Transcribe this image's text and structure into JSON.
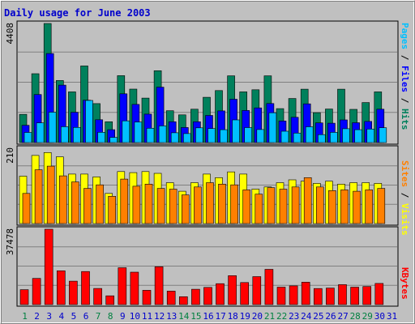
{
  "chart_data": {
    "type": "bar",
    "title": "Daily usage for June 2003",
    "categories": [
      "1",
      "2",
      "3",
      "4",
      "5",
      "6",
      "7",
      "8",
      "9",
      "10",
      "11",
      "12",
      "13",
      "14",
      "15",
      "16",
      "17",
      "18",
      "19",
      "20",
      "21",
      "22",
      "23",
      "24",
      "25",
      "26",
      "27",
      "28",
      "29",
      "30",
      "31"
    ],
    "weekend_days": [
      "1",
      "7",
      "8",
      "14",
      "15",
      "21",
      "22",
      "28",
      "29"
    ],
    "colors": {
      "background": "#c0c0c0",
      "border_outer": "#808080",
      "title": "#0000cc",
      "grid": "#808080",
      "hits": "#00805c",
      "files": "#0000ff",
      "pages": "#00c0ff",
      "visits": "#ffff00",
      "sites": "#ff8000",
      "kbytes": "#ff0000",
      "weekday_label": "#0000cc",
      "weekend_label": "#008040"
    },
    "panels": [
      {
        "id": "hits-files-pages",
        "ymax_label": "4408",
        "ymax": 4408,
        "legend": [
          {
            "text": "Pages",
            "color": "#00c0ff"
          },
          {
            "text": " / ",
            "color": "#000000"
          },
          {
            "text": "Files",
            "color": "#0000ff"
          },
          {
            "text": " / ",
            "color": "#000000"
          },
          {
            "text": "Hits",
            "color": "#00805c"
          }
        ],
        "series": [
          {
            "name": "Hits",
            "color": "#00805c",
            "values": [
              1044,
              2548,
              4408,
              2296,
              1876,
              2836,
              1442,
              772,
              2476,
              1980,
              1646,
              2660,
              1178,
              1026,
              1236,
              1676,
              1924,
              2470,
              1876,
              1954,
              2470,
              1256,
              1630,
              1976,
              1106,
              1240,
              1976,
              1228,
              1480,
              1876,
              0
            ]
          },
          {
            "name": "Files",
            "color": "#0000ff",
            "values": [
              640,
              1778,
              3296,
              2126,
              1120,
              1568,
              846,
              476,
              1806,
              1412,
              1054,
              2052,
              772,
              558,
              772,
              1004,
              1172,
              1604,
              1186,
              1284,
              1446,
              798,
              936,
              1432,
              728,
              718,
              840,
              734,
              784,
              1236,
              0
            ]
          },
          {
            "name": "Pages",
            "color": "#00c0ff",
            "values": [
              376,
              728,
              1124,
              588,
              560,
              1558,
              380,
              192,
              804,
              760,
              530,
              618,
              362,
              332,
              546,
              518,
              476,
              840,
              556,
              484,
              1104,
              420,
              350,
              584,
              294,
              378,
              512,
              476,
              500,
              550,
              0
            ]
          }
        ]
      },
      {
        "id": "visits-sites",
        "ymax_label": "210",
        "ymax": 210,
        "legend": [
          {
            "text": "Sites",
            "color": "#ff8000"
          },
          {
            "text": " / ",
            "color": "#000000"
          },
          {
            "text": "Visits",
            "color": "#ffff00"
          }
        ],
        "series": [
          {
            "name": "Visits",
            "color": "#ffff00",
            "values": [
              132,
              190,
              198,
              186,
              138,
              138,
              130,
              84,
              145,
              142,
              145,
              140,
              114,
              90,
              114,
              138,
              128,
              144,
              138,
              96,
              102,
              114,
              122,
              118,
              112,
              118,
              110,
              114,
              114,
              112,
              0
            ]
          },
          {
            "name": "Sites",
            "color": "#ff8000",
            "values": [
              84,
              150,
              160,
              133,
              116,
              98,
              108,
              76,
              124,
              104,
              110,
              98,
              96,
              80,
              102,
              114,
              110,
              108,
              94,
              82,
              100,
              96,
              102,
              128,
              102,
              92,
              94,
              90,
              94,
              98,
              0
            ]
          }
        ]
      },
      {
        "id": "kbytes",
        "ymax_label": "37478",
        "ymax": 37478,
        "legend": [
          {
            "text": "KBytes",
            "color": "#ff0000"
          }
        ],
        "series": [
          {
            "name": "KBytes",
            "color": "#ff0000",
            "values": [
              7420,
              13000,
              37478,
              16790,
              11630,
              16460,
              8000,
              4350,
              18350,
              16100,
              7080,
              18800,
              6700,
              3920,
              7600,
              8560,
              10400,
              14380,
              10960,
              13900,
              17540,
              8670,
              9300,
              11130,
              7960,
              8240,
              9920,
              8670,
              9000,
              10500,
              0
            ]
          }
        ]
      }
    ]
  }
}
